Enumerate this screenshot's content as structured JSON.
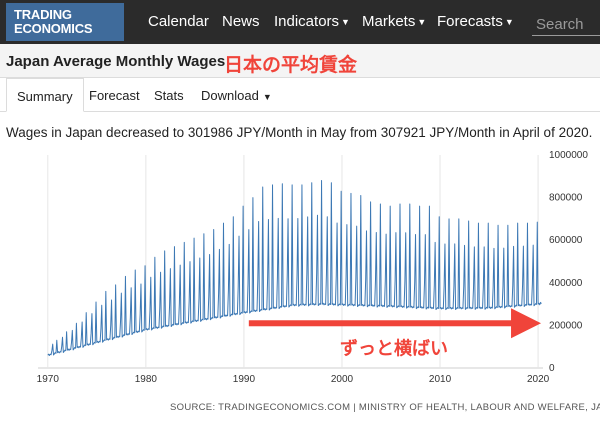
{
  "nav": {
    "logo_line1": "TRADING",
    "logo_line2": "ECONOMICS",
    "items": [
      {
        "label": "Calendar"
      },
      {
        "label": "News"
      },
      {
        "label": "Indicators",
        "dropdown": true
      },
      {
        "label": "Markets",
        "dropdown": true
      },
      {
        "label": "Forecasts",
        "dropdown": true
      }
    ],
    "search_placeholder": "Search"
  },
  "header": {
    "title": "Japan Average Monthly Wages",
    "title_jp": "日本の平均賃金"
  },
  "tabs": [
    {
      "label": "Summary",
      "active": true
    },
    {
      "label": "Forecast"
    },
    {
      "label": "Stats"
    },
    {
      "label": "Download",
      "dropdown": true
    }
  ],
  "summary_text": "Wages in Japan decreased to 301986 JPY/Month in May from 307921 JPY/Month in April of 2020.",
  "source": "SOURCE: TRADINGECONOMICS.COM | MINISTRY OF HEALTH, LABOUR AND WELFARE, JAPAN",
  "colors": {
    "navbar": "#2b2b2b",
    "logo": "#3f6b9b",
    "line": "#3c78b4",
    "annotation": "#f0443a"
  },
  "chart_data": {
    "type": "line",
    "title": "",
    "xlabel": "",
    "ylabel": "",
    "xlim": [
      1969,
      2020.5
    ],
    "ylim": [
      0,
      1000000
    ],
    "x_ticks": [
      1970,
      1980,
      1990,
      2000,
      2010,
      2020
    ],
    "y_ticks": [
      0,
      200000,
      400000,
      600000,
      800000,
      1000000
    ],
    "y_tick_labels": [
      "0",
      "200000",
      "400000",
      "600000",
      "800000",
      "1000000"
    ],
    "grid": "vertical",
    "seasonal_pattern": "annual bonus peaks in June/July and December",
    "series": [
      {
        "name": "",
        "baseline": {
          "x": [
            1970,
            1975,
            1980,
            1985,
            1990,
            1995,
            1998,
            2005,
            2010,
            2015,
            2020
          ],
          "y": [
            60000,
            120000,
            180000,
            220000,
            260000,
            295000,
            300000,
            290000,
            280000,
            282000,
            300000
          ]
        },
        "december_peaks": {
          "x": [
            1970,
            1971,
            1972,
            1973,
            1974,
            1975,
            1976,
            1977,
            1978,
            1979,
            1980,
            1981,
            1982,
            1983,
            1984,
            1985,
            1986,
            1987,
            1988,
            1989,
            1990,
            1991,
            1992,
            1993,
            1994,
            1995,
            1996,
            1997,
            1998,
            1999,
            2000,
            2001,
            2002,
            2003,
            2004,
            2005,
            2006,
            2007,
            2008,
            2009,
            2010,
            2011,
            2012,
            2013,
            2014,
            2015,
            2016,
            2017,
            2018,
            2019
          ],
          "y": [
            130000,
            170000,
            210000,
            260000,
            310000,
            360000,
            390000,
            430000,
            460000,
            480000,
            520000,
            550000,
            570000,
            590000,
            610000,
            630000,
            650000,
            680000,
            710000,
            760000,
            800000,
            850000,
            860000,
            865000,
            860000,
            860000,
            870000,
            880000,
            870000,
            830000,
            820000,
            810000,
            780000,
            770000,
            760000,
            770000,
            770000,
            760000,
            760000,
            710000,
            700000,
            700000,
            690000,
            680000,
            680000,
            670000,
            670000,
            680000,
            680000,
            685000
          ]
        },
        "summer_peak_ratio": 0.72,
        "latest_points": {
          "x": [
            2020.25,
            2020.33
          ],
          "y": [
            307921,
            301986
          ]
        }
      }
    ],
    "annotation": {
      "text": "ずっと横ばい",
      "arrow_from_x": 1990.5,
      "arrow_to_x": 2020.3,
      "arrow_y": 210000
    }
  }
}
